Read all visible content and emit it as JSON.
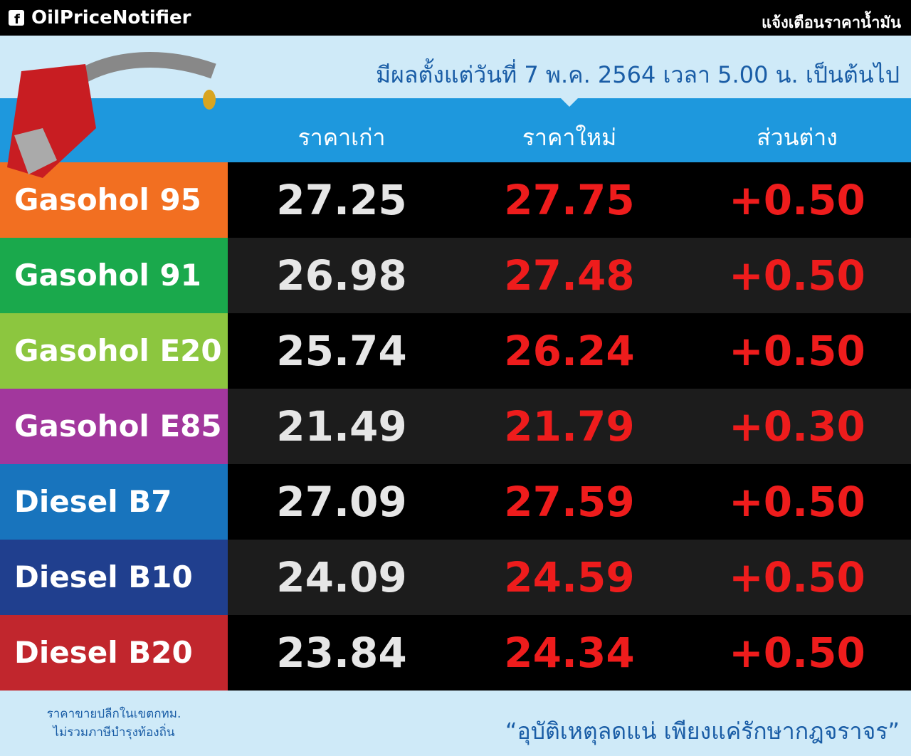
{
  "header": {
    "brand": "OilPriceNotifier",
    "tagline": "แจ้งเตือนราคาน้ำมัน"
  },
  "effective": "มีผลตั้งแต่วันที่ 7 พ.ค. 2564 เวลา 5.00 น. เป็นต้นไป",
  "table": {
    "columns": [
      "ราคาเก่า",
      "ราคาใหม่",
      "ส่วนต่าง"
    ],
    "rows": [
      {
        "name": "Gasohol 95",
        "color": "#f26f21",
        "old": "27.25",
        "new": "27.75",
        "diff": "+0.50"
      },
      {
        "name": "Gasohol 91",
        "color": "#1aa94c",
        "old": "26.98",
        "new": "27.48",
        "diff": "+0.50"
      },
      {
        "name": "Gasohol E20",
        "color": "#8cc63f",
        "old": "25.74",
        "new": "26.24",
        "diff": "+0.50"
      },
      {
        "name": "Gasohol E85",
        "color": "#a2379d",
        "old": "21.49",
        "new": "21.79",
        "diff": "+0.30"
      },
      {
        "name": "Diesel B7",
        "color": "#1874bd",
        "old": "27.09",
        "new": "27.59",
        "diff": "+0.50"
      },
      {
        "name": "Diesel B10",
        "color": "#203f8e",
        "old": "24.09",
        "new": "24.59",
        "diff": "+0.50"
      },
      {
        "name": "Diesel B20",
        "color": "#c1262d",
        "old": "23.84",
        "new": "24.34",
        "diff": "+0.50"
      }
    ]
  },
  "footer": {
    "note": [
      "ราคาขายปลีกในเขตกทม.",
      "ไม่รวมภาษีบำรุงท้องถิ่น"
    ],
    "slogan": "“อุบัติเหตุลดแน่ เพียงแค่รักษากฎจราจร”"
  }
}
